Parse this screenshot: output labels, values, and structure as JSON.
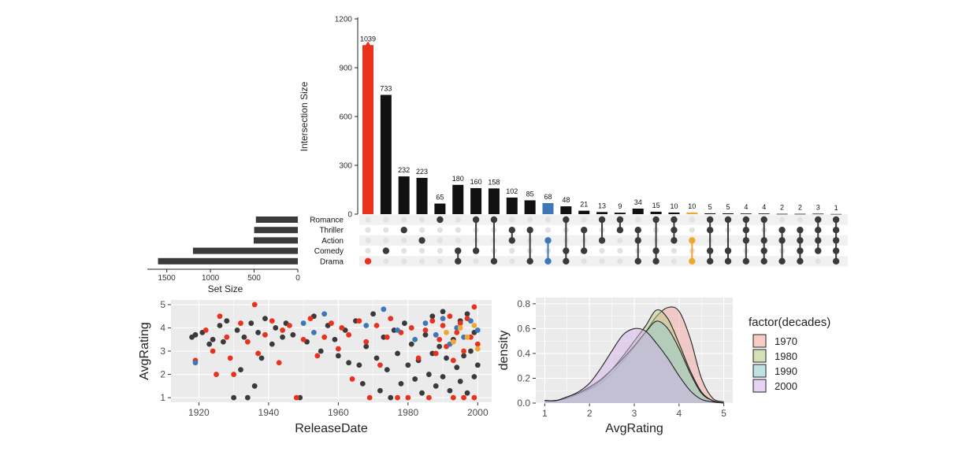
{
  "colors": {
    "bar": "#111111",
    "dot_on": "#3a3a3a",
    "dot_off": "#e2e2e2",
    "highlight_red": "#e8321e",
    "highlight_blue": "#3d77b6",
    "highlight_orange": "#f0a732",
    "panel_bg": "#ebebeb",
    "grid": "#ffffff"
  },
  "chart_data": [
    {
      "type": "bar",
      "name": "intersections",
      "ylabel": "Intersection Size",
      "ylim": [
        0,
        1200
      ],
      "yticks": [
        0,
        300,
        600,
        900,
        1200
      ],
      "values": [
        1039,
        733,
        232,
        223,
        65,
        180,
        160,
        158,
        102,
        85,
        68,
        48,
        21,
        13,
        9,
        34,
        15,
        10,
        10,
        5,
        5,
        4,
        4,
        2,
        2,
        3,
        1
      ],
      "value_labels": [
        "1039",
        "733",
        "232",
        "223",
        "65",
        "180",
        "160",
        "158",
        "102",
        "85",
        "68",
        "48",
        "21",
        "13",
        "9",
        "34",
        "15",
        "10",
        "10",
        "5",
        "5",
        "4",
        "4",
        "2",
        "2",
        "3",
        "1"
      ],
      "highlight": {
        "0": "red",
        "10": "blue",
        "18": "orange"
      },
      "triangle_marker": {
        "column": 0,
        "color": "red"
      }
    },
    {
      "type": "table",
      "name": "matrix",
      "sets": [
        "Romance",
        "Thriller",
        "Action",
        "Comedy",
        "Drama"
      ],
      "combinations": [
        [
          "Drama"
        ],
        [
          "Comedy"
        ],
        [
          "Thriller"
        ],
        [
          "Action"
        ],
        [
          "Romance"
        ],
        [
          "Comedy",
          "Drama"
        ],
        [
          "Romance",
          "Comedy"
        ],
        [
          "Romance",
          "Drama"
        ],
        [
          "Thriller",
          "Action"
        ],
        [
          "Thriller",
          "Drama"
        ],
        [
          "Action",
          "Drama"
        ],
        [
          "Romance",
          "Comedy",
          "Drama"
        ],
        [
          "Thriller",
          "Comedy"
        ],
        [
          "Romance",
          "Action"
        ],
        [
          "Romance",
          "Thriller"
        ],
        [
          "Thriller",
          "Action",
          "Drama"
        ],
        [
          "Romance",
          "Comedy",
          "Drama"
        ],
        [
          "Romance",
          "Thriller",
          "Action"
        ],
        [
          "Action",
          "Drama"
        ],
        [
          "Romance",
          "Thriller",
          "Comedy",
          "Drama"
        ],
        [
          "Romance",
          "Comedy",
          "Drama"
        ],
        [
          "Romance",
          "Thriller",
          "Action",
          "Drama"
        ],
        [
          "Romance",
          "Action",
          "Comedy",
          "Drama"
        ],
        [
          "Thriller",
          "Action",
          "Drama"
        ],
        [
          "Thriller",
          "Action",
          "Comedy",
          "Drama"
        ],
        [
          "Romance",
          "Thriller",
          "Action",
          "Comedy"
        ],
        [
          "Romance",
          "Thriller",
          "Action",
          "Comedy",
          "Drama"
        ]
      ]
    },
    {
      "type": "bar",
      "name": "set_size",
      "orientation": "horizontal",
      "xlabel": "Set Size",
      "categories": [
        "Romance",
        "Thriller",
        "Action",
        "Comedy",
        "Drama"
      ],
      "values": [
        480,
        500,
        505,
        1200,
        1600
      ],
      "xlim": [
        0,
        1650
      ],
      "xticks": [
        1500,
        1000,
        500,
        0
      ],
      "reversed": true
    },
    {
      "type": "scatter",
      "name": "scatter",
      "xlabel": "ReleaseDate",
      "ylabel": "AvgRating",
      "xlim": [
        1912,
        2004
      ],
      "ylim": [
        0.8,
        5.2
      ],
      "xticks": [
        1920,
        1940,
        1960,
        1980,
        2000
      ],
      "yticks": [
        1,
        2,
        3,
        4,
        5
      ],
      "series": [
        {
          "name": "dark",
          "color": "dot_on",
          "points": [
            [
              1918,
              3.6
            ],
            [
              1919,
              3.7
            ],
            [
              1921,
              3.8
            ],
            [
              1923,
              3.3
            ],
            [
              1924,
              3.5
            ],
            [
              1926,
              4.1
            ],
            [
              1927,
              3.4
            ],
            [
              1928,
              4.3
            ],
            [
              1930,
              1.0
            ],
            [
              1931,
              3.9
            ],
            [
              1932,
              2.2
            ],
            [
              1933,
              3.6
            ],
            [
              1934,
              1.0
            ],
            [
              1935,
              4.2
            ],
            [
              1936,
              1.5
            ],
            [
              1937,
              3.8
            ],
            [
              1938,
              2.7
            ],
            [
              1939,
              4.4
            ],
            [
              1941,
              3.3
            ],
            [
              1942,
              4.0
            ],
            [
              1944,
              3.6
            ],
            [
              1945,
              4.2
            ],
            [
              1947,
              3.7
            ],
            [
              1949,
              1.0
            ],
            [
              1951,
              3.4
            ],
            [
              1953,
              4.5
            ],
            [
              1955,
              3.0
            ],
            [
              1957,
              4.1
            ],
            [
              1959,
              3.5
            ],
            [
              1960,
              2.8
            ],
            [
              1962,
              3.9
            ],
            [
              1963,
              2.5
            ],
            [
              1965,
              4.3
            ],
            [
              1966,
              2.4
            ],
            [
              1967,
              1.6
            ],
            [
              1968,
              3.2
            ],
            [
              1970,
              4.6
            ],
            [
              1971,
              2.7
            ],
            [
              1972,
              1.3
            ],
            [
              1973,
              3.6
            ],
            [
              1974,
              2.2
            ],
            [
              1975,
              1.0
            ],
            [
              1976,
              3.9
            ],
            [
              1977,
              2.9
            ],
            [
              1978,
              1.6
            ],
            [
              1979,
              4.2
            ],
            [
              1980,
              2.4
            ],
            [
              1981,
              3.3
            ],
            [
              1982,
              1.8
            ],
            [
              1983,
              2.6
            ],
            [
              1984,
              1.2
            ],
            [
              1985,
              3.7
            ],
            [
              1986,
              2.0
            ],
            [
              1987,
              2.9
            ],
            [
              1988,
              1.5
            ],
            [
              1989,
              3.2
            ],
            [
              1990,
              1.9
            ],
            [
              1991,
              2.7
            ],
            [
              1992,
              1.3
            ],
            [
              1993,
              3.5
            ],
            [
              1994,
              2.3
            ],
            [
              1995,
              1.7
            ],
            [
              1996,
              2.8
            ],
            [
              1997,
              1.2
            ],
            [
              1998,
              3.0
            ],
            [
              1999,
              1.9
            ],
            [
              2000,
              2.4
            ],
            [
              1995,
              4.3
            ],
            [
              1997,
              4.6
            ],
            [
              1999,
              3.8
            ],
            [
              1990,
              4.7
            ],
            [
              1987,
              4.5
            ]
          ]
        },
        {
          "name": "red",
          "color": "highlight_red",
          "points": [
            [
              1919,
              2.6
            ],
            [
              1922,
              3.9
            ],
            [
              1924,
              3.0
            ],
            [
              1925,
              2.0
            ],
            [
              1926,
              4.5
            ],
            [
              1928,
              3.6
            ],
            [
              1929,
              2.7
            ],
            [
              1930,
              2.0
            ],
            [
              1932,
              4.2
            ],
            [
              1934,
              3.4
            ],
            [
              1936,
              5.0
            ],
            [
              1937,
              2.9
            ],
            [
              1939,
              3.7
            ],
            [
              1941,
              4.3
            ],
            [
              1943,
              2.5
            ],
            [
              1944,
              3.9
            ],
            [
              1946,
              4.1
            ],
            [
              1948,
              1.0
            ],
            [
              1950,
              3.5
            ],
            [
              1952,
              4.4
            ],
            [
              1954,
              2.8
            ],
            [
              1956,
              3.6
            ],
            [
              1958,
              4.2
            ],
            [
              1960,
              3.1
            ],
            [
              1961,
              4.0
            ],
            [
              1963,
              3.7
            ],
            [
              1964,
              1.8
            ],
            [
              1966,
              4.3
            ],
            [
              1968,
              3.4
            ],
            [
              1969,
              1.0
            ],
            [
              1971,
              4.1
            ],
            [
              1972,
              2.4
            ],
            [
              1974,
              3.6
            ],
            [
              1975,
              4.4
            ],
            [
              1977,
              1.0
            ],
            [
              1978,
              3.8
            ],
            [
              1980,
              1.0
            ],
            [
              1981,
              4.0
            ],
            [
              1983,
              2.7
            ],
            [
              1985,
              3.9
            ],
            [
              1986,
              1.0
            ],
            [
              1987,
              4.3
            ],
            [
              1988,
              2.9
            ],
            [
              1989,
              3.5
            ],
            [
              1990,
              4.1
            ],
            [
              1991,
              3.2
            ],
            [
              1992,
              4.5
            ],
            [
              1993,
              2.6
            ],
            [
              1994,
              3.8
            ],
            [
              1995,
              4.2
            ],
            [
              1996,
              3.0
            ],
            [
              1997,
              4.4
            ],
            [
              1998,
              3.6
            ],
            [
              1999,
              4.9
            ],
            [
              2000,
              3.3
            ],
            [
              1993,
              1.0
            ],
            [
              1996,
              1.0
            ],
            [
              1999,
              1.0
            ]
          ]
        },
        {
          "name": "blue",
          "color": "highlight_blue",
          "points": [
            [
              1919,
              2.5
            ],
            [
              1950,
              4.2
            ],
            [
              1953,
              3.8
            ],
            [
              1956,
              4.6
            ],
            [
              1968,
              4.1
            ],
            [
              1973,
              4.8
            ],
            [
              1977,
              3.9
            ],
            [
              1982,
              3.5
            ],
            [
              1985,
              4.2
            ],
            [
              1988,
              3.7
            ],
            [
              1990,
              4.4
            ],
            [
              1992,
              3.3
            ],
            [
              1994,
              4.0
            ],
            [
              1996,
              3.6
            ],
            [
              1998,
              4.3
            ],
            [
              2000,
              3.9
            ]
          ]
        },
        {
          "name": "orange",
          "color": "highlight_orange",
          "points": [
            [
              1991,
              3.8
            ],
            [
              1993,
              3.4
            ],
            [
              1995,
              4.0
            ],
            [
              1997,
              3.6
            ],
            [
              1999,
              4.1
            ],
            [
              2000,
              3.1
            ]
          ]
        }
      ]
    },
    {
      "type": "area",
      "name": "density",
      "xlabel": "AvgRating",
      "ylabel": "density",
      "xlim": [
        0.8,
        5.2
      ],
      "ylim": [
        0,
        0.85
      ],
      "xticks": [
        1,
        2,
        3,
        4,
        5
      ],
      "yticks": [
        0.0,
        0.2,
        0.4,
        0.6,
        0.8
      ],
      "ytick_labels": [
        "0.0",
        "0.2",
        "0.4",
        "0.6",
        "0.8"
      ],
      "x": [
        1.0,
        1.25,
        1.5,
        1.75,
        2.0,
        2.25,
        2.5,
        2.75,
        3.0,
        3.25,
        3.5,
        3.75,
        4.0,
        4.25,
        4.5,
        4.75,
        5.0
      ],
      "legend_title": "factor(decades)",
      "series": [
        {
          "name": "1970",
          "color": "#f4a8a0",
          "values": [
            0.02,
            0.02,
            0.04,
            0.07,
            0.11,
            0.16,
            0.24,
            0.34,
            0.45,
            0.57,
            0.7,
            0.77,
            0.74,
            0.52,
            0.2,
            0.04,
            0.01
          ]
        },
        {
          "name": "1980",
          "color": "#b9cc88",
          "values": [
            0.02,
            0.02,
            0.04,
            0.08,
            0.12,
            0.18,
            0.27,
            0.38,
            0.5,
            0.62,
            0.75,
            0.68,
            0.48,
            0.26,
            0.09,
            0.02,
            0.0
          ]
        },
        {
          "name": "1990",
          "color": "#93cfcf",
          "values": [
            0.02,
            0.02,
            0.05,
            0.08,
            0.13,
            0.19,
            0.27,
            0.36,
            0.46,
            0.57,
            0.66,
            0.6,
            0.44,
            0.24,
            0.08,
            0.02,
            0.0
          ]
        },
        {
          "name": "2000",
          "color": "#d3b4ec",
          "values": [
            0.02,
            0.02,
            0.05,
            0.09,
            0.16,
            0.28,
            0.42,
            0.55,
            0.6,
            0.58,
            0.48,
            0.36,
            0.22,
            0.1,
            0.03,
            0.01,
            0.0
          ]
        }
      ]
    }
  ]
}
